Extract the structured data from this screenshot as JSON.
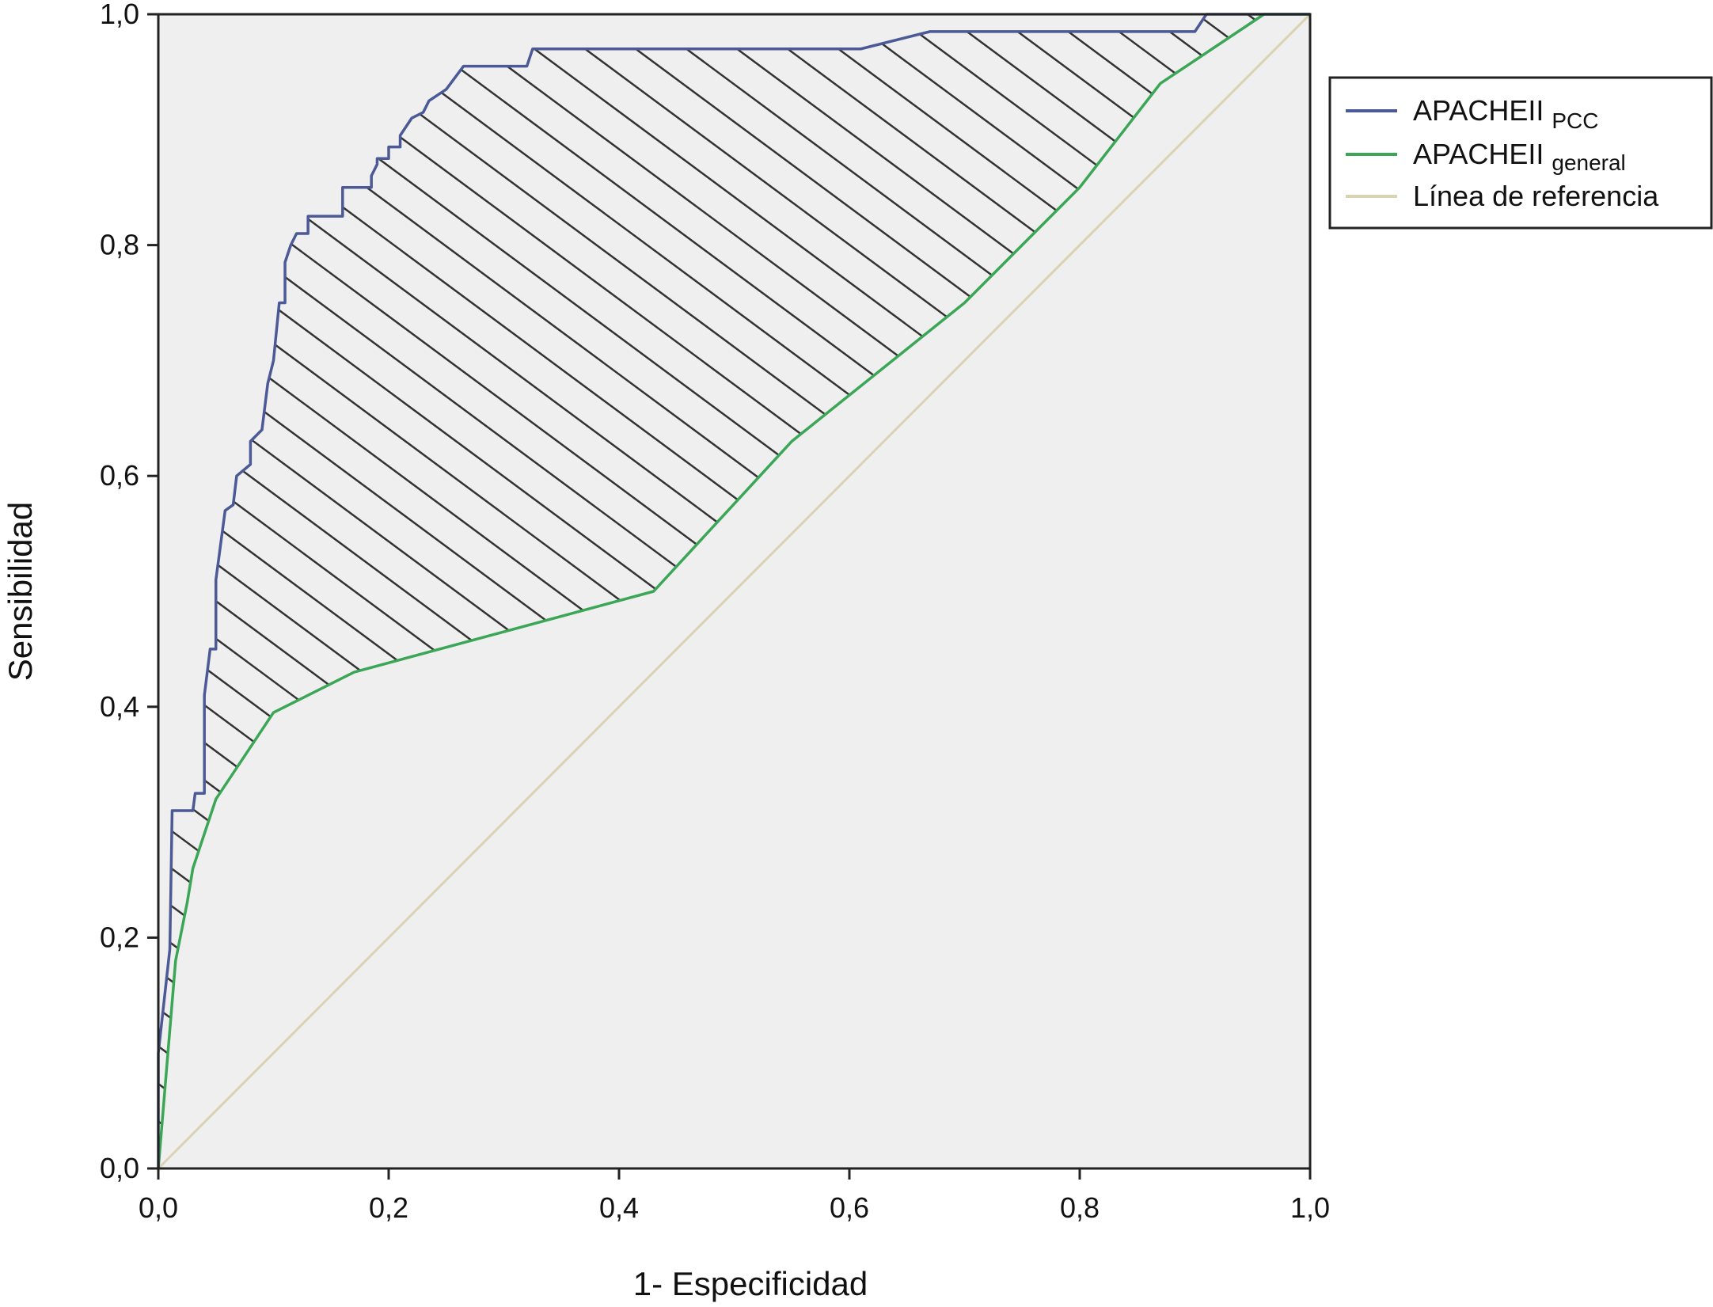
{
  "chart_data": {
    "type": "line",
    "xlabel": "1- Especificidad",
    "ylabel": "Sensibilidad",
    "xlim": [
      0,
      1
    ],
    "ylim": [
      0,
      1
    ],
    "x_ticks": [
      "0,0",
      "0,2",
      "0,4",
      "0,6",
      "0,8",
      "1,0"
    ],
    "y_ticks": [
      "0,0",
      "0,2",
      "0,4",
      "0,6",
      "0,8",
      "1,0"
    ],
    "grid": false,
    "legend_position": "top-right",
    "shaded_region": "hatched area between APACHEII PCC and APACHEII general curves",
    "plot_background": "#efefef",
    "series": [
      {
        "name": "APACHEII",
        "name_sub": "PCC",
        "color": "#4b5a96",
        "points": [
          [
            0.0,
            0.0
          ],
          [
            0.0,
            0.1
          ],
          [
            0.01,
            0.19
          ],
          [
            0.012,
            0.31
          ],
          [
            0.03,
            0.31
          ],
          [
            0.032,
            0.325
          ],
          [
            0.04,
            0.325
          ],
          [
            0.04,
            0.41
          ],
          [
            0.045,
            0.45
          ],
          [
            0.05,
            0.45
          ],
          [
            0.05,
            0.51
          ],
          [
            0.058,
            0.57
          ],
          [
            0.065,
            0.575
          ],
          [
            0.068,
            0.6
          ],
          [
            0.08,
            0.61
          ],
          [
            0.08,
            0.63
          ],
          [
            0.09,
            0.64
          ],
          [
            0.095,
            0.68
          ],
          [
            0.1,
            0.7
          ],
          [
            0.105,
            0.75
          ],
          [
            0.11,
            0.75
          ],
          [
            0.11,
            0.785
          ],
          [
            0.115,
            0.8
          ],
          [
            0.12,
            0.81
          ],
          [
            0.13,
            0.81
          ],
          [
            0.13,
            0.825
          ],
          [
            0.16,
            0.825
          ],
          [
            0.16,
            0.85
          ],
          [
            0.185,
            0.85
          ],
          [
            0.185,
            0.86
          ],
          [
            0.19,
            0.87
          ],
          [
            0.19,
            0.875
          ],
          [
            0.2,
            0.875
          ],
          [
            0.2,
            0.885
          ],
          [
            0.21,
            0.885
          ],
          [
            0.21,
            0.895
          ],
          [
            0.22,
            0.91
          ],
          [
            0.23,
            0.915
          ],
          [
            0.235,
            0.925
          ],
          [
            0.25,
            0.935
          ],
          [
            0.265,
            0.955
          ],
          [
            0.32,
            0.955
          ],
          [
            0.325,
            0.97
          ],
          [
            0.61,
            0.97
          ],
          [
            0.67,
            0.985
          ],
          [
            0.9,
            0.985
          ],
          [
            0.91,
            1.0
          ],
          [
            1.0,
            1.0
          ]
        ]
      },
      {
        "name": "APACHEII",
        "name_sub": "general",
        "color": "#3aa656",
        "points": [
          [
            0.0,
            0.0
          ],
          [
            0.005,
            0.06
          ],
          [
            0.01,
            0.12
          ],
          [
            0.015,
            0.18
          ],
          [
            0.025,
            0.23
          ],
          [
            0.03,
            0.26
          ],
          [
            0.05,
            0.32
          ],
          [
            0.1,
            0.395
          ],
          [
            0.17,
            0.43
          ],
          [
            0.3,
            0.465
          ],
          [
            0.43,
            0.5
          ],
          [
            0.55,
            0.63
          ],
          [
            0.7,
            0.75
          ],
          [
            0.8,
            0.85
          ],
          [
            0.87,
            0.94
          ],
          [
            0.96,
            1.0
          ],
          [
            1.0,
            1.0
          ]
        ]
      },
      {
        "name": "Línea de referencia",
        "color": "#d8d3b2",
        "points": [
          [
            0.0,
            0.0
          ],
          [
            1.0,
            1.0
          ]
        ]
      }
    ]
  }
}
